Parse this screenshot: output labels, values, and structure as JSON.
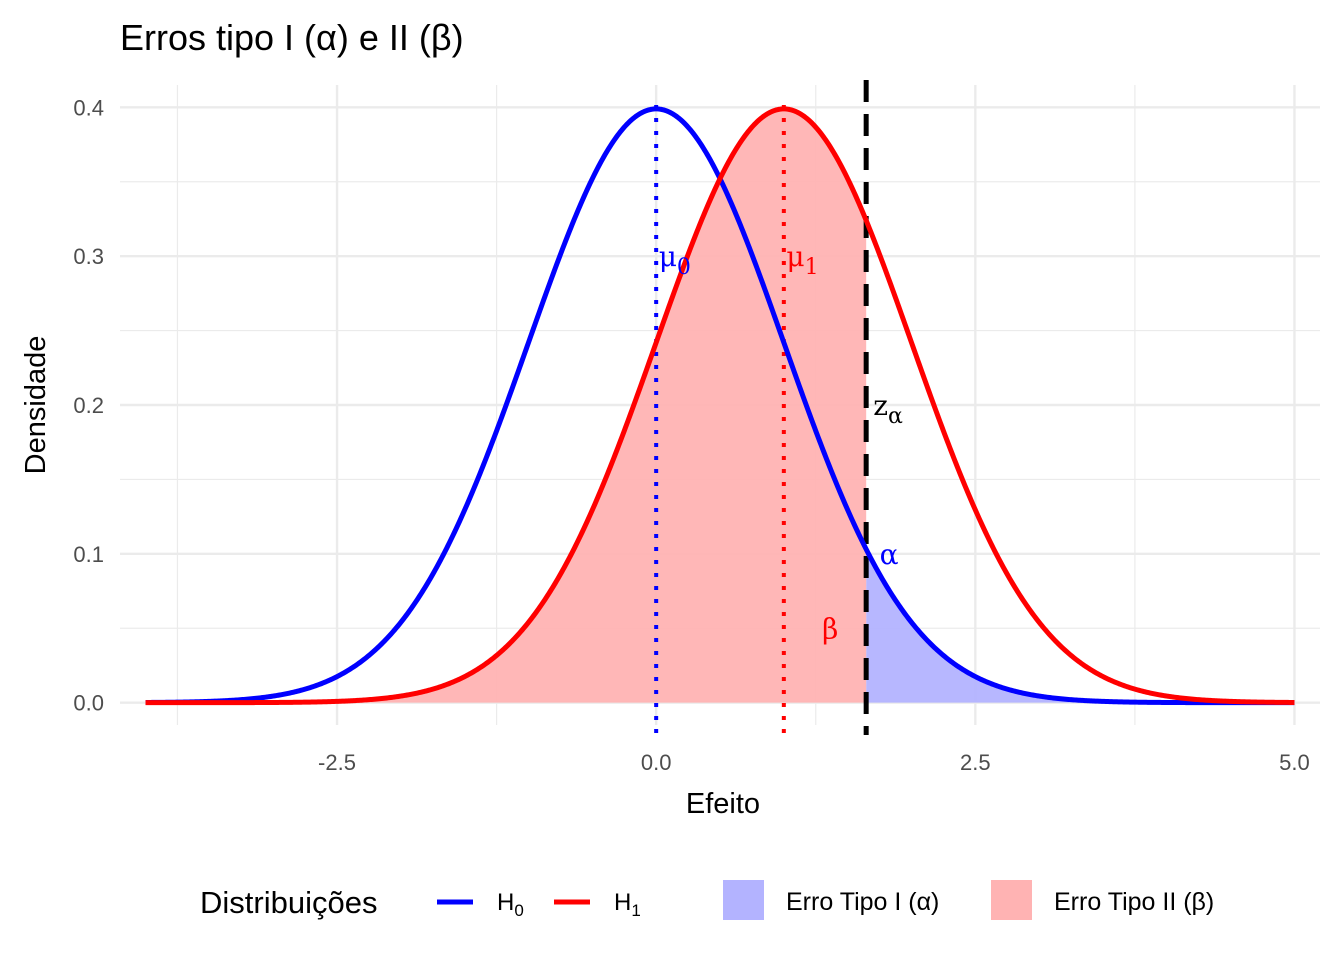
{
  "chart_data": {
    "type": "area",
    "title": "Erros tipo I (α) e II (β)",
    "xlabel": "Efeito",
    "ylabel": "Densidade",
    "xlim": [
      -4.2,
      5.2
    ],
    "ylim": [
      -0.015,
      0.415
    ],
    "x_range": [
      -4,
      5
    ],
    "x_ticks": [
      -2.5,
      0.0,
      2.5,
      5.0
    ],
    "x_tick_labels": [
      "-2.5",
      "0.0",
      "2.5",
      "5.0"
    ],
    "y_ticks": [
      0.0,
      0.1,
      0.2,
      0.3,
      0.4
    ],
    "y_tick_labels": [
      "0.0",
      "0.1",
      "0.2",
      "0.3",
      "0.4"
    ],
    "grid": true,
    "critical_value": 1.645,
    "series": [
      {
        "name": "H0",
        "distribution": "normal",
        "mean": 0,
        "sd": 1,
        "color": "#0000ff"
      },
      {
        "name": "H1",
        "distribution": "normal",
        "mean": 1,
        "sd": 1,
        "color": "#ff0000"
      }
    ],
    "shaded_regions": [
      {
        "name": "Erro Tipo I (α)",
        "under": "H0",
        "from": 1.645,
        "to": 5,
        "color": "#b3b3ff"
      },
      {
        "name": "Erro Tipo II (β)",
        "under": "H1",
        "from": -4,
        "to": 1.645,
        "color": "#ffb3b3"
      }
    ],
    "annotations": [
      {
        "text": "μ",
        "sub": "0",
        "x": 0.02,
        "y": 0.3,
        "color": "#0000ff"
      },
      {
        "text": "μ",
        "sub": "1",
        "x": 1.02,
        "y": 0.3,
        "color": "#ff0000"
      },
      {
        "text": "z",
        "sub": "α",
        "x": 1.7,
        "y": 0.2,
        "color": "#000000"
      },
      {
        "text": "α",
        "sub": "",
        "x": 1.75,
        "y": 0.1,
        "color": "#0000ff"
      },
      {
        "text": "β",
        "sub": "",
        "x": 1.3,
        "y": 0.05,
        "color": "#ff0000"
      }
    ],
    "legend": {
      "placement": "bottom",
      "title": "Distribuições",
      "lines": [
        {
          "label": "H",
          "sub": "0",
          "color": "#0000ff"
        },
        {
          "label": "H",
          "sub": "1",
          "color": "#ff0000"
        }
      ],
      "fills": [
        {
          "label": "Erro Tipo I (α)",
          "color": "#b3b3ff"
        },
        {
          "label": "Erro Tipo II (β)",
          "color": "#ffb3b3"
        }
      ]
    }
  }
}
